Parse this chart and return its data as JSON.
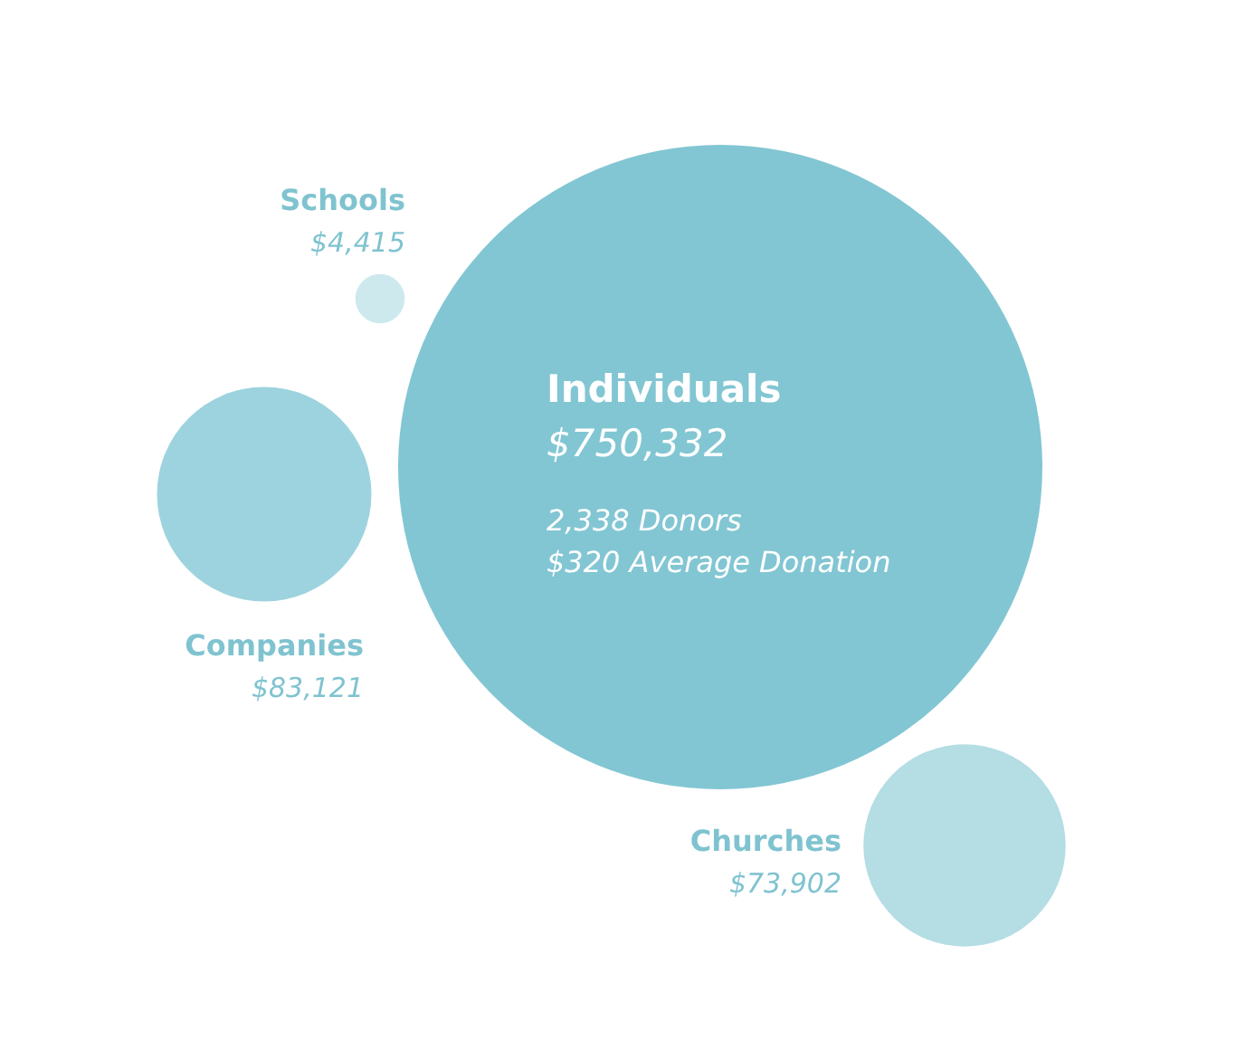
{
  "chart_data": {
    "type": "other",
    "categories": [
      "Individuals",
      "Companies",
      "Churches",
      "Schools"
    ],
    "values": [
      750332,
      83121,
      73902,
      4415
    ],
    "value_labels": [
      "$750,332",
      "$83,121",
      "$73,902",
      "$4,415"
    ],
    "colors": [
      "#82c6d3",
      "#9dd3de",
      "#b4dde4",
      "#cde9ee"
    ],
    "annotations": [
      "2,338 Donors",
      "$320 Average Donation"
    ]
  }
}
